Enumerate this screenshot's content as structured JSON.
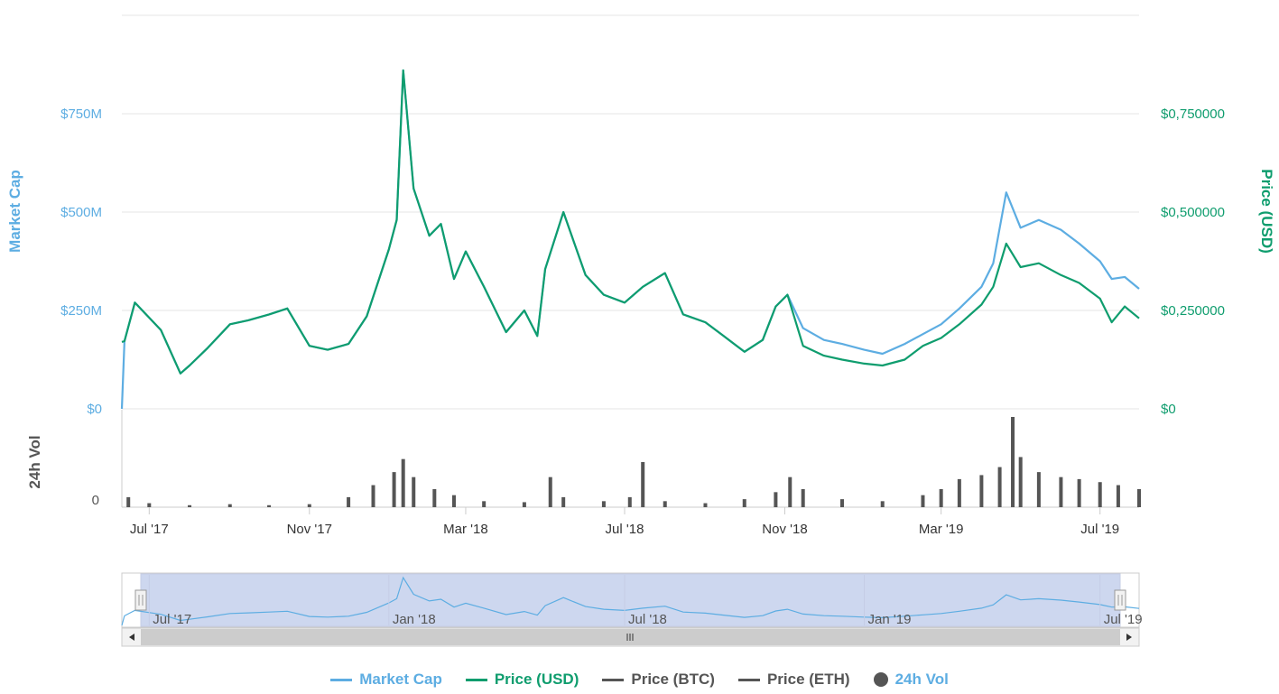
{
  "chart_data": {
    "type": "line",
    "left_axis": {
      "title": "Market Cap",
      "ticks": [
        "$0",
        "$250M",
        "$500M",
        "$750M"
      ],
      "tick_values": [
        0,
        250,
        500,
        750
      ],
      "unit": "M USD",
      "range": [
        0,
        1000
      ]
    },
    "right_axis": {
      "title": "Price (USD)",
      "ticks": [
        "$0",
        "$0,250000",
        "$0,500000",
        "$0,750000"
      ],
      "tick_values": [
        0,
        0.25,
        0.5,
        0.75
      ],
      "range": [
        0,
        1.0
      ]
    },
    "volume_axis": {
      "title": "24h Vol",
      "ticks": [
        "0"
      ]
    },
    "x_ticks": [
      "Jul '17",
      "Nov '17",
      "Mar '18",
      "Jul '18",
      "Nov '18",
      "Mar '19",
      "Jul '19"
    ],
    "x_tick_dates": [
      "2017-07-01",
      "2017-11-01",
      "2018-03-01",
      "2018-07-01",
      "2018-11-01",
      "2019-03-01",
      "2019-07-01"
    ],
    "x_range": [
      "2017-06-10",
      "2019-07-31"
    ],
    "navigator_ticks": [
      "Jul '17",
      "Jan '18",
      "Jul '18",
      "Jan '19",
      "Jul '19"
    ],
    "navigator_tick_dates": [
      "2017-07-01",
      "2018-01-01",
      "2018-07-01",
      "2019-01-01",
      "2019-07-01"
    ],
    "legend_position": "bottom-center",
    "colors": {
      "market_cap": "#5dade2",
      "price_usd": "#0f9d6e",
      "price_btc": "#555555",
      "price_eth": "#555555",
      "volume": "#555555",
      "navigator_fill": "#cdd7ef"
    },
    "series": [
      {
        "name": "Market Cap",
        "axis": "left",
        "x": [
          "2017-06-10",
          "2017-06-12",
          "2017-06-20",
          "2017-07-10",
          "2017-07-25",
          "2017-08-01",
          "2017-08-15",
          "2017-09-01",
          "2017-09-15",
          "2017-10-01",
          "2017-10-15",
          "2017-11-01",
          "2017-11-15",
          "2017-12-01",
          "2017-12-15",
          "2018-01-01",
          "2018-01-07",
          "2018-01-12",
          "2018-01-20",
          "2018-02-01",
          "2018-02-10",
          "2018-02-20",
          "2018-03-01",
          "2018-03-15",
          "2018-04-01",
          "2018-04-15",
          "2018-04-25",
          "2018-05-01",
          "2018-05-15",
          "2018-06-01",
          "2018-06-15",
          "2018-07-01",
          "2018-07-15",
          "2018-08-01",
          "2018-08-15",
          "2018-09-01",
          "2018-09-15",
          "2018-10-01",
          "2018-10-15",
          "2018-10-25",
          "2018-11-03",
          "2018-11-15",
          "2018-12-01",
          "2018-12-15",
          "2019-01-01",
          "2019-01-15",
          "2019-02-01",
          "2019-02-15",
          "2019-03-01",
          "2019-03-15",
          "2019-04-01",
          "2019-04-10",
          "2019-04-20",
          "2019-05-01",
          "2019-05-15",
          "2019-06-01",
          "2019-06-15",
          "2019-07-01",
          "2019-07-10",
          "2019-07-20",
          "2019-07-31"
        ],
        "values": [
          0,
          172,
          270,
          200,
          90,
          110,
          155,
          215,
          225,
          240,
          255,
          160,
          150,
          165,
          235,
          405,
          480,
          860,
          560,
          440,
          470,
          330,
          400,
          310,
          195,
          250,
          185,
          355,
          500,
          340,
          290,
          270,
          310,
          345,
          240,
          220,
          185,
          145,
          175,
          260,
          290,
          205,
          175,
          165,
          150,
          140,
          165,
          190,
          215,
          255,
          310,
          370,
          550,
          460,
          480,
          455,
          420,
          375,
          330,
          335,
          305
        ]
      },
      {
        "name": "Price (USD)",
        "axis": "right",
        "x": [
          "2017-06-10",
          "2017-06-12",
          "2017-06-20",
          "2017-07-10",
          "2017-07-25",
          "2017-08-01",
          "2017-08-15",
          "2017-09-01",
          "2017-09-15",
          "2017-10-01",
          "2017-10-15",
          "2017-11-01",
          "2017-11-15",
          "2017-12-01",
          "2017-12-15",
          "2018-01-01",
          "2018-01-07",
          "2018-01-12",
          "2018-01-20",
          "2018-02-01",
          "2018-02-10",
          "2018-02-20",
          "2018-03-01",
          "2018-03-15",
          "2018-04-01",
          "2018-04-15",
          "2018-04-25",
          "2018-05-01",
          "2018-05-15",
          "2018-06-01",
          "2018-06-15",
          "2018-07-01",
          "2018-07-15",
          "2018-08-01",
          "2018-08-15",
          "2018-09-01",
          "2018-09-15",
          "2018-10-01",
          "2018-10-15",
          "2018-10-25",
          "2018-11-03",
          "2018-11-15",
          "2018-12-01",
          "2018-12-15",
          "2019-01-01",
          "2019-01-15",
          "2019-02-01",
          "2019-02-15",
          "2019-03-01",
          "2019-03-15",
          "2019-04-01",
          "2019-04-10",
          "2019-04-20",
          "2019-05-01",
          "2019-05-15",
          "2019-06-01",
          "2019-06-15",
          "2019-07-01",
          "2019-07-10",
          "2019-07-20",
          "2019-07-31"
        ],
        "values": [
          0.17,
          0.172,
          0.27,
          0.2,
          0.09,
          0.11,
          0.155,
          0.215,
          0.225,
          0.24,
          0.255,
          0.16,
          0.15,
          0.165,
          0.235,
          0.405,
          0.48,
          0.86,
          0.56,
          0.44,
          0.47,
          0.33,
          0.4,
          0.31,
          0.195,
          0.25,
          0.185,
          0.355,
          0.5,
          0.34,
          0.29,
          0.27,
          0.31,
          0.345,
          0.24,
          0.22,
          0.185,
          0.145,
          0.175,
          0.26,
          0.29,
          0.16,
          0.135,
          0.125,
          0.115,
          0.11,
          0.125,
          0.16,
          0.18,
          0.215,
          0.265,
          0.31,
          0.42,
          0.36,
          0.37,
          0.34,
          0.32,
          0.28,
          0.22,
          0.26,
          0.23
        ]
      }
    ],
    "volume": {
      "x": [
        "2017-06-15",
        "2017-07-01",
        "2017-08-01",
        "2017-09-01",
        "2017-10-01",
        "2017-11-01",
        "2017-12-01",
        "2017-12-20",
        "2018-01-05",
        "2018-01-12",
        "2018-01-20",
        "2018-02-05",
        "2018-02-20",
        "2018-03-15",
        "2018-04-15",
        "2018-05-05",
        "2018-05-15",
        "2018-06-15",
        "2018-07-05",
        "2018-07-15",
        "2018-08-01",
        "2018-09-01",
        "2018-10-01",
        "2018-10-25",
        "2018-11-05",
        "2018-11-15",
        "2018-12-15",
        "2019-01-15",
        "2019-02-15",
        "2019-03-01",
        "2019-03-15",
        "2019-04-01",
        "2019-04-15",
        "2019-04-25",
        "2019-05-01",
        "2019-05-15",
        "2019-06-01",
        "2019-06-15",
        "2019-07-01",
        "2019-07-15",
        "2019-07-31"
      ],
      "values": [
        10,
        4,
        2,
        3,
        2,
        3,
        10,
        22,
        35,
        48,
        30,
        18,
        12,
        6,
        5,
        30,
        10,
        6,
        10,
        45,
        6,
        4,
        8,
        15,
        30,
        18,
        8,
        6,
        12,
        18,
        28,
        32,
        40,
        90,
        50,
        35,
        30,
        28,
        25,
        22,
        18
      ]
    }
  }
}
